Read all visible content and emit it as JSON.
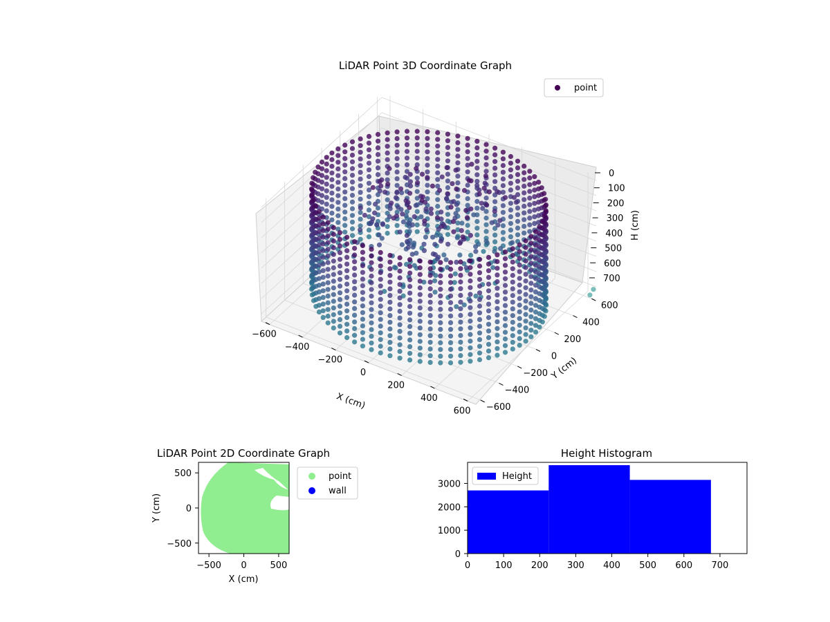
{
  "colors": {
    "viridis_dark": "#440154",
    "viridis_mid": "#3b528b",
    "viridis_teal": "#21918c",
    "point_2d": "#90ee90",
    "wall_2d": "#0000ff",
    "histogram": "#0000ff"
  },
  "chart_data": [
    {
      "id": "scatter3d",
      "type": "scatter",
      "title": "LiDAR Point 3D Coordinate Graph",
      "xlabel": "X (cm)",
      "ylabel": "Y (cm)",
      "zlabel": "H (cm)",
      "x_ticks": [
        "−600",
        "−400",
        "−200",
        "0",
        "200",
        "400",
        "600"
      ],
      "y_ticks": [
        "600",
        "400",
        "200",
        "0",
        "−200",
        "−400",
        "−600"
      ],
      "z_ticks": [
        "0",
        "100",
        "200",
        "300",
        "400",
        "500",
        "600",
        "700"
      ],
      "xlim": [
        -650,
        650
      ],
      "ylim": [
        -650,
        650
      ],
      "zlim": [
        0,
        750
      ],
      "z_inverted": true,
      "legend": [
        {
          "label": "point",
          "color": "#440154"
        }
      ],
      "legend_position": "top-right",
      "series": [
        {
          "name": "point",
          "shape": "cylindrical wall of points, radius ≈ 650 cm, height ≈ 0–680 cm, with interior clutter near the center"
        }
      ],
      "outliers": [
        {
          "x": 650,
          "y": 620,
          "h": 700
        },
        {
          "x": 640,
          "y": 600,
          "h": 730
        }
      ],
      "grid": true
    },
    {
      "id": "scatter2d",
      "type": "scatter",
      "title": "LiDAR Point 2D Coordinate Graph",
      "xlabel": "X (cm)",
      "ylabel": "Y (cm)",
      "x_ticks": [
        "−500",
        "0",
        "500"
      ],
      "y_ticks": [
        "500",
        "0",
        "−500"
      ],
      "xlim": [
        -650,
        650
      ],
      "ylim": [
        -650,
        650
      ],
      "legend": [
        {
          "label": "point",
          "color": "#90ee90"
        },
        {
          "label": "wall",
          "color": "#0000ff"
        }
      ],
      "legend_position": "outside-right",
      "series": [
        {
          "name": "point",
          "shape": "filled disc, radius ≈ 640 cm, with gaps in the upper-right quadrant"
        },
        {
          "name": "wall",
          "values": []
        }
      ]
    },
    {
      "id": "histogram",
      "type": "bar",
      "title": "Height Histogram",
      "legend": [
        {
          "label": "Height",
          "color": "#0000ff"
        }
      ],
      "legend_position": "top-left",
      "x_ticks": [
        "0",
        "100",
        "200",
        "300",
        "400",
        "500",
        "600",
        "700"
      ],
      "y_ticks": [
        "0",
        "1000",
        "2000",
        "3000"
      ],
      "xlim": [
        0,
        775
      ],
      "ylim": [
        0,
        3900
      ],
      "bins": [
        {
          "x0": 0,
          "x1": 225,
          "count": 2700
        },
        {
          "x0": 225,
          "x1": 450,
          "count": 3780
        },
        {
          "x0": 450,
          "x1": 675,
          "count": 3150
        }
      ],
      "grid": false
    }
  ]
}
